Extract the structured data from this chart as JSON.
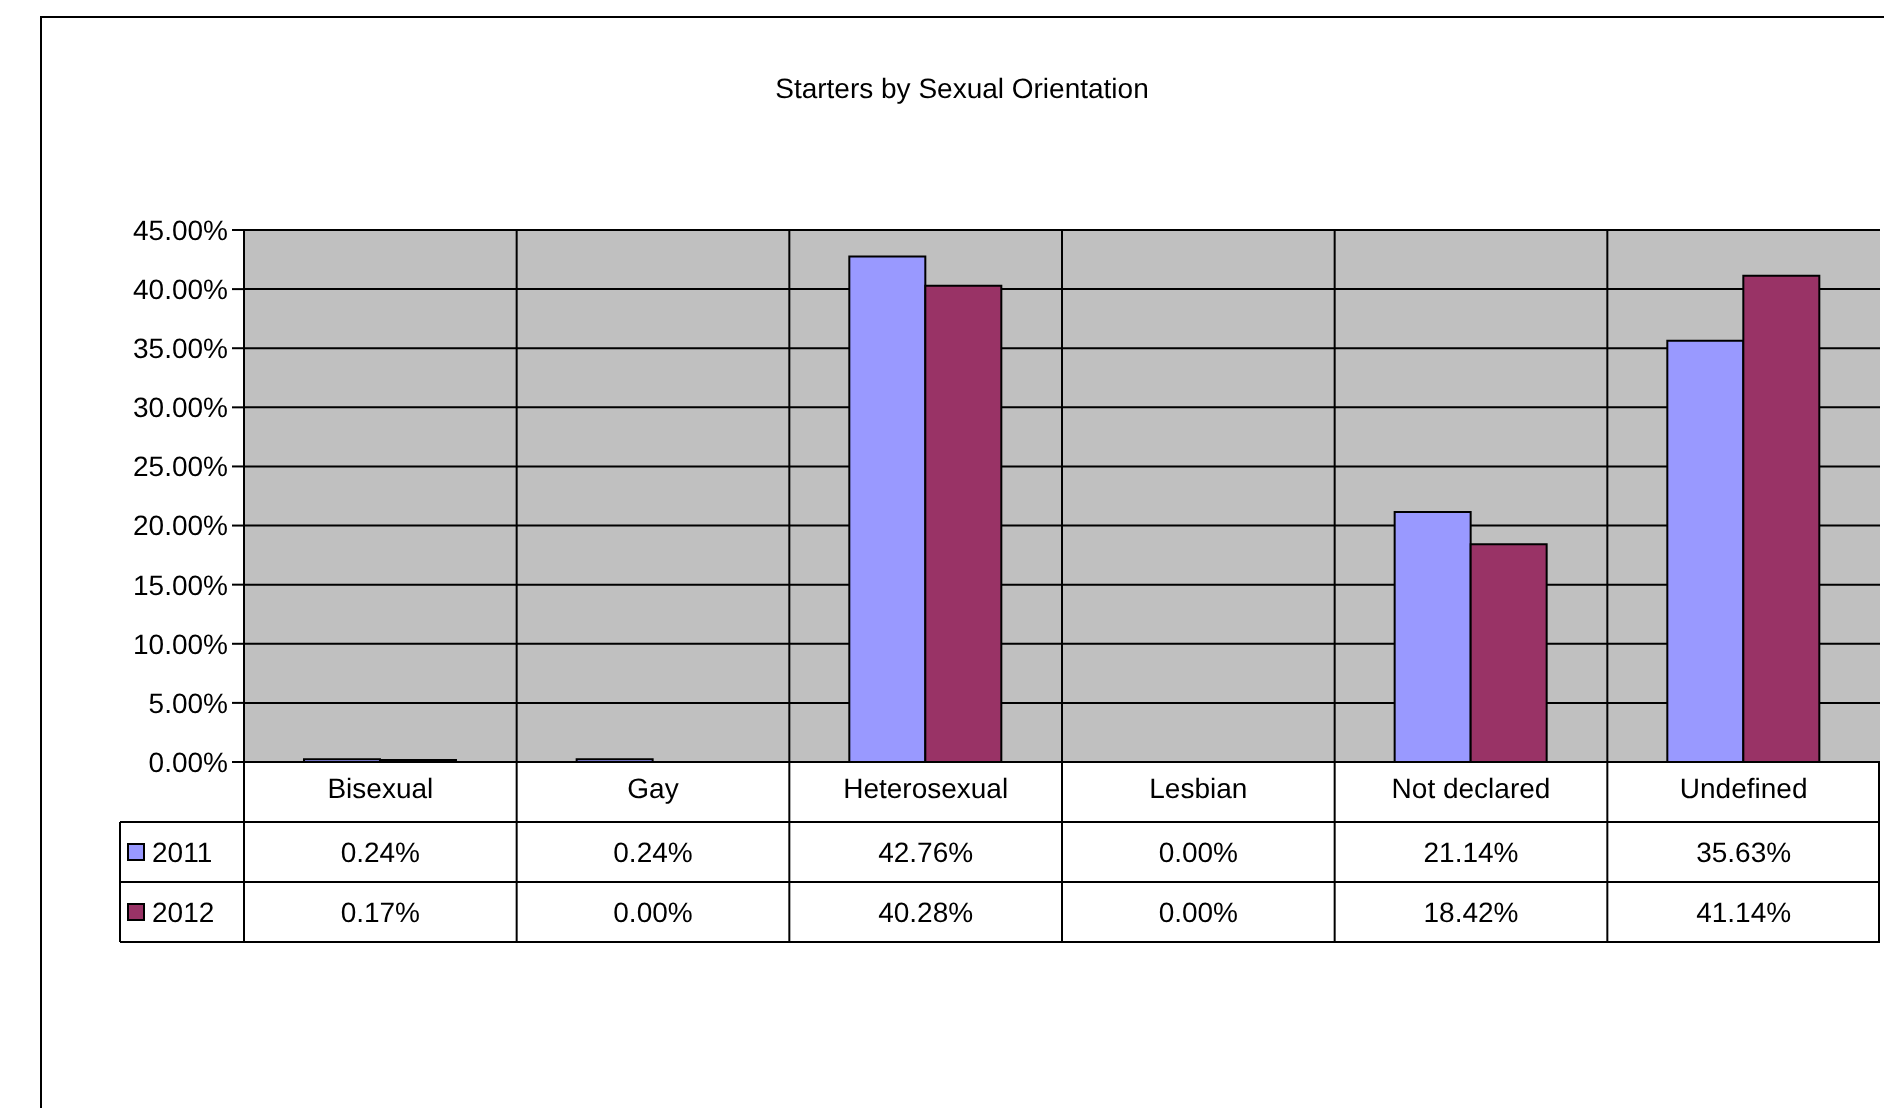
{
  "chart_data": {
    "type": "bar",
    "title": "Starters by Sexual Orientation",
    "categories": [
      "Bisexual",
      "Gay",
      "Heterosexual",
      "Lesbian",
      "Not declared",
      "Undefined"
    ],
    "series": [
      {
        "name": "2011",
        "color": "#9999ff",
        "values": [
          0.24,
          0.24,
          42.76,
          0,
          21.14,
          35.63
        ],
        "value_labels": [
          "0.24%",
          "0.24%",
          "42.76%",
          "0.00%",
          "21.14%",
          "35.63%"
        ]
      },
      {
        "name": "2012",
        "color": "#993366",
        "values": [
          0.17,
          0,
          40.28,
          0,
          18.42,
          41.14
        ],
        "value_labels": [
          "0.17%",
          "0.00%",
          "40.28%",
          "0.00%",
          "18.42%",
          "41.14%"
        ]
      }
    ],
    "ylim": [
      0,
      45
    ],
    "yticks": [
      {
        "value": 0,
        "label": "0.00%"
      },
      {
        "value": 5,
        "label": "5.00%"
      },
      {
        "value": 10,
        "label": "10.00%"
      },
      {
        "value": 15,
        "label": "15.00%"
      },
      {
        "value": 20,
        "label": "20.00%"
      },
      {
        "value": 25,
        "label": "25.00%"
      },
      {
        "value": 30,
        "label": "30.00%"
      },
      {
        "value": 35,
        "label": "35.00%"
      },
      {
        "value": 40,
        "label": "40.00%"
      },
      {
        "value": 45,
        "label": "45.00%"
      }
    ],
    "grid": true,
    "legend": "bottom left"
  }
}
